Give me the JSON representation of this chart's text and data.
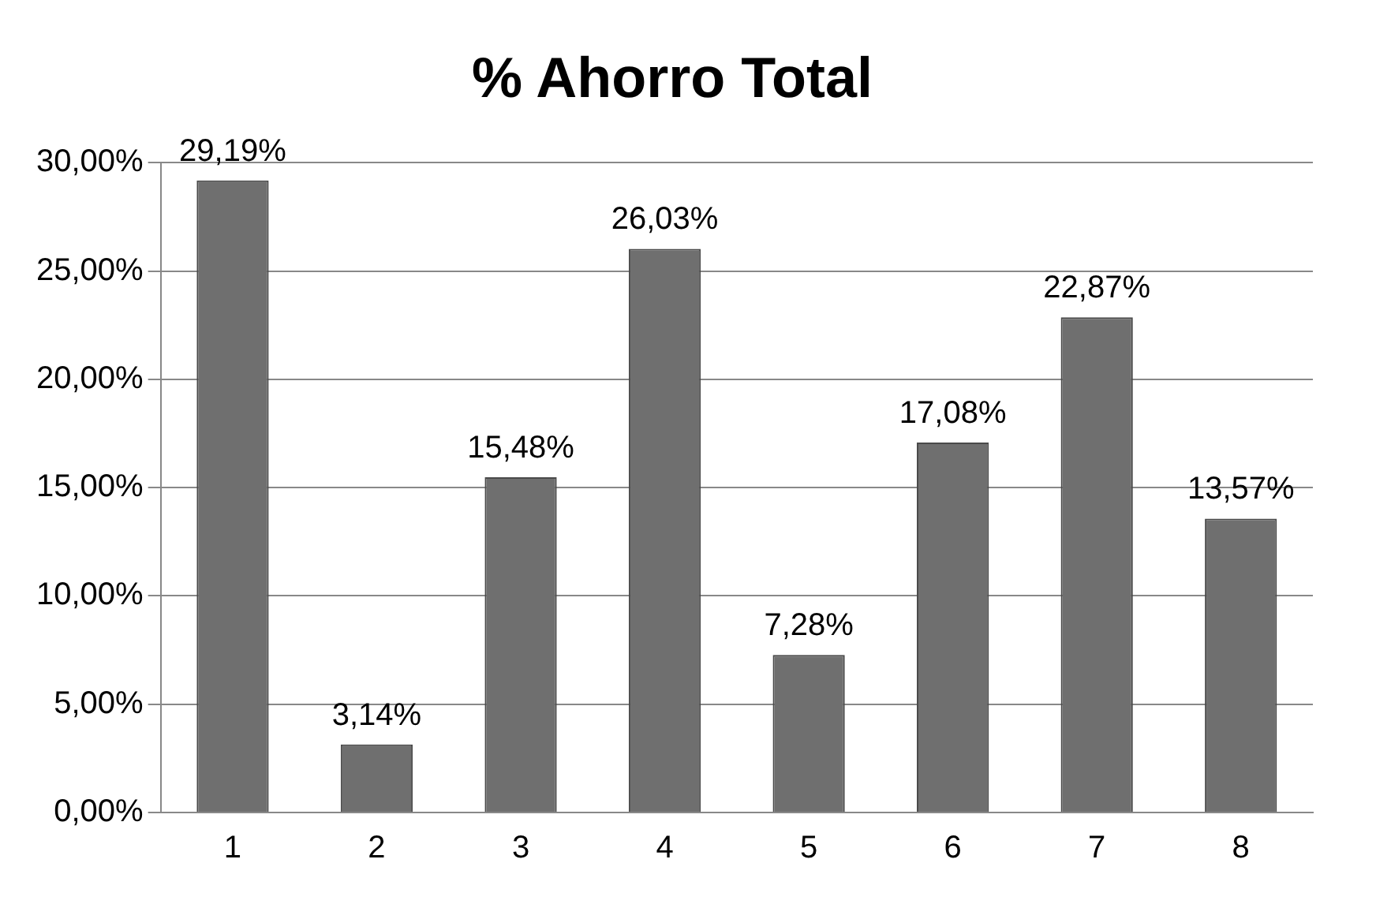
{
  "chart_data": {
    "type": "bar",
    "title": "% Ahorro Total",
    "categories": [
      "1",
      "2",
      "3",
      "4",
      "5",
      "6",
      "7",
      "8"
    ],
    "values": [
      29.19,
      3.14,
      15.48,
      26.03,
      7.28,
      17.08,
      22.87,
      13.57
    ],
    "value_labels": [
      "29,19%",
      "3,14%",
      "15,48%",
      "26,03%",
      "7,28%",
      "17,08%",
      "22,87%",
      "13,57%"
    ],
    "color": "#6f6f6f",
    "ylim": [
      0,
      30
    ],
    "yticks": [
      {
        "value": 0,
        "label": "0,00%"
      },
      {
        "value": 5,
        "label": "5,00%"
      },
      {
        "value": 10,
        "label": "10,00%"
      },
      {
        "value": 15,
        "label": "15,00%"
      },
      {
        "value": 20,
        "label": "20,00%"
      },
      {
        "value": 25,
        "label": "25,00%"
      },
      {
        "value": 30,
        "label": "30,00%"
      }
    ],
    "grid": "y",
    "legend": false
  }
}
